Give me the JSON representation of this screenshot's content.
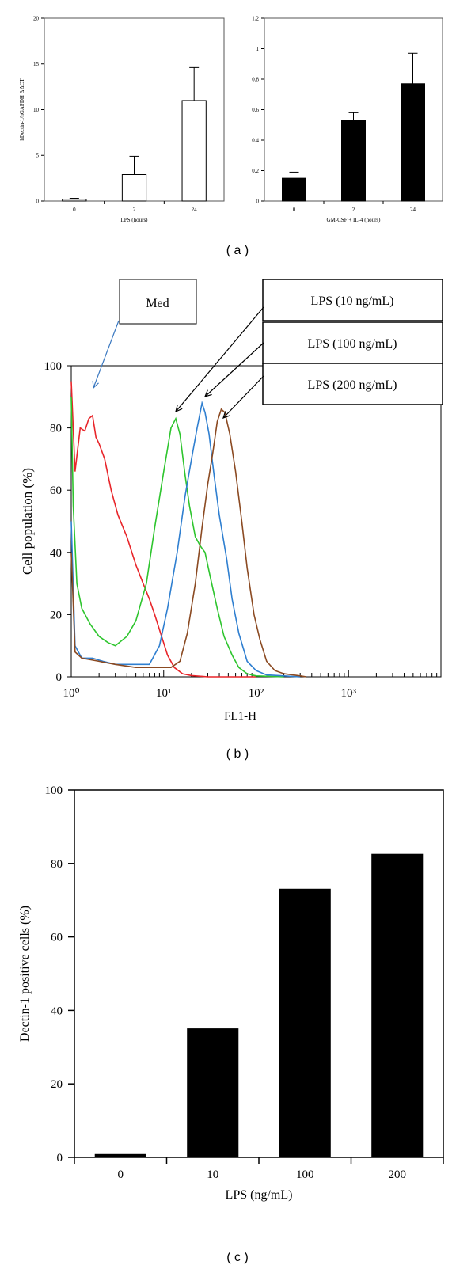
{
  "panels": {
    "a": "( a )",
    "b": "( b )",
    "c": "( c )"
  },
  "legend_b": {
    "med": "Med",
    "lps10": "LPS (10 ng/mL)",
    "lps100": "LPS (100 ng/mL)",
    "lps200": "LPS (200 ng/mL)"
  },
  "chart_data": [
    {
      "type": "bar",
      "categories": [
        "0",
        "2",
        "24"
      ],
      "values": [
        0.2,
        2.9,
        11.0
      ],
      "errors": [
        0.1,
        2.0,
        3.6
      ],
      "xlabel": "LPS (hours)",
      "ylabel": "hDectin-1/hGAPDH Δ ΔCT",
      "ylim": [
        0,
        20
      ],
      "yticks": [
        "0",
        "5",
        "10",
        "15",
        "20"
      ],
      "bar_color": "#ffffff"
    },
    {
      "type": "bar",
      "categories": [
        "0",
        "2",
        "24"
      ],
      "values": [
        0.15,
        0.53,
        0.77
      ],
      "errors": [
        0.04,
        0.05,
        0.2
      ],
      "xlabel": "GM-CSF + IL-4 (hours)",
      "ylabel": "",
      "ylim": [
        0,
        1.2
      ],
      "yticks": [
        "0",
        "0.2",
        "0.4",
        "0.6",
        "0.8",
        "1",
        "1.2"
      ],
      "bar_color": "#000000"
    },
    {
      "type": "line",
      "xlabel": "FL1-H",
      "ylabel": "Cell population (%)",
      "x_scale": "log",
      "xlim": [
        1,
        10000
      ],
      "ylim": [
        0,
        100
      ],
      "yticks": [
        "0",
        "20",
        "40",
        "60",
        "80",
        "100"
      ],
      "xtick_labels": [
        "10⁰",
        "10¹",
        "10²",
        "10³"
      ],
      "series": [
        {
          "name": "Med",
          "color": "#e8252a",
          "points": [
            [
              1,
              95
            ],
            [
              1.1,
              66
            ],
            [
              1.25,
              80
            ],
            [
              1.4,
              79
            ],
            [
              1.55,
              83
            ],
            [
              1.7,
              84
            ],
            [
              1.85,
              77
            ],
            [
              2,
              75
            ],
            [
              2.3,
              70
            ],
            [
              2.7,
              60
            ],
            [
              3.2,
              52
            ],
            [
              4,
              45
            ],
            [
              5,
              36
            ],
            [
              6,
              30
            ],
            [
              7,
              25
            ],
            [
              8,
              20
            ],
            [
              9.5,
              13
            ],
            [
              11,
              7
            ],
            [
              13,
              3
            ],
            [
              16,
              1
            ],
            [
              20,
              0.4
            ],
            [
              30,
              0
            ],
            [
              100,
              0
            ]
          ]
        },
        {
          "name": "LPS (10 ng/mL)",
          "color": "#2ec52e",
          "points": [
            [
              1,
              90
            ],
            [
              1.05,
              55
            ],
            [
              1.15,
              30
            ],
            [
              1.3,
              22
            ],
            [
              1.6,
              17
            ],
            [
              2,
              13
            ],
            [
              2.5,
              11
            ],
            [
              3,
              10
            ],
            [
              4,
              13
            ],
            [
              5,
              18
            ],
            [
              6.5,
              30
            ],
            [
              8,
              48
            ],
            [
              10,
              66
            ],
            [
              12,
              80
            ],
            [
              13.5,
              83
            ],
            [
              15,
              78
            ],
            [
              17,
              65
            ],
            [
              19,
              55
            ],
            [
              22,
              45
            ],
            [
              25,
              42
            ],
            [
              28,
              40
            ],
            [
              32,
              32
            ],
            [
              38,
              22
            ],
            [
              45,
              13
            ],
            [
              55,
              7
            ],
            [
              65,
              3
            ],
            [
              80,
              1
            ],
            [
              100,
              0.3
            ],
            [
              200,
              0
            ]
          ]
        },
        {
          "name": "LPS (100 ng/mL)",
          "color": "#2f7fd0",
          "points": [
            [
              1,
              50
            ],
            [
              1.1,
              10
            ],
            [
              1.3,
              6
            ],
            [
              1.7,
              6
            ],
            [
              2.2,
              5
            ],
            [
              3,
              4
            ],
            [
              4,
              4
            ],
            [
              5,
              4
            ],
            [
              7,
              4
            ],
            [
              9,
              10
            ],
            [
              11,
              22
            ],
            [
              14,
              40
            ],
            [
              17,
              58
            ],
            [
              20,
              70
            ],
            [
              23,
              80
            ],
            [
              26,
              88
            ],
            [
              28,
              85
            ],
            [
              31,
              78
            ],
            [
              35,
              65
            ],
            [
              40,
              52
            ],
            [
              48,
              38
            ],
            [
              55,
              25
            ],
            [
              65,
              14
            ],
            [
              80,
              5
            ],
            [
              100,
              2
            ],
            [
              130,
              0.6
            ],
            [
              200,
              0.3
            ],
            [
              300,
              0
            ]
          ]
        },
        {
          "name": "LPS (200 ng/mL)",
          "color": "#8b4a22",
          "points": [
            [
              1,
              40
            ],
            [
              1.1,
              8
            ],
            [
              1.3,
              6
            ],
            [
              2,
              5
            ],
            [
              3,
              4
            ],
            [
              5,
              3
            ],
            [
              8,
              3
            ],
            [
              12,
              3
            ],
            [
              15,
              5
            ],
            [
              18,
              14
            ],
            [
              22,
              30
            ],
            [
              26,
              48
            ],
            [
              30,
              62
            ],
            [
              34,
              72
            ],
            [
              38,
              82
            ],
            [
              42,
              86
            ],
            [
              46,
              85
            ],
            [
              52,
              78
            ],
            [
              60,
              66
            ],
            [
              70,
              50
            ],
            [
              80,
              35
            ],
            [
              95,
              20
            ],
            [
              110,
              12
            ],
            [
              130,
              5
            ],
            [
              160,
              2
            ],
            [
              200,
              1
            ],
            [
              300,
              0.3
            ],
            [
              350,
              0
            ]
          ]
        }
      ]
    },
    {
      "type": "bar",
      "categories": [
        "0",
        "10",
        "100",
        "200"
      ],
      "values": [
        0.8,
        35,
        73,
        82.5
      ],
      "xlabel": "LPS (ng/mL)",
      "ylabel": "Dectin-1 positive cells (%)",
      "ylim": [
        0,
        100
      ],
      "yticks": [
        "0",
        "20",
        "40",
        "60",
        "80",
        "100"
      ],
      "bar_color": "#000000"
    }
  ]
}
